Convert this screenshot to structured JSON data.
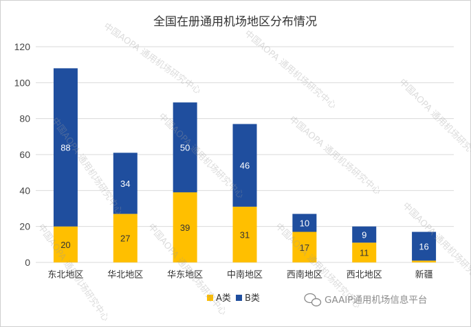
{
  "chart_data": {
    "type": "bar",
    "stacked": true,
    "title": "全国在册通用机场地区分布情况",
    "categories": [
      "东北地区",
      "华北地区",
      "华东地区",
      "中南地区",
      "西南地区",
      "西北地区",
      "新疆"
    ],
    "series": [
      {
        "name": "A类",
        "color": "#ffbf00",
        "values": [
          20,
          27,
          39,
          31,
          17,
          11,
          1
        ],
        "labels": [
          "20",
          "27",
          "39",
          "31",
          "17",
          "11",
          ""
        ]
      },
      {
        "name": "B类",
        "color": "#1f4e9e",
        "values": [
          88,
          34,
          50,
          46,
          10,
          9,
          16
        ],
        "labels": [
          "88",
          "34",
          "50",
          "46",
          "10",
          "9",
          "16"
        ]
      }
    ],
    "yticks": [
      0,
      20,
      40,
      60,
      80,
      100,
      120
    ],
    "ylim": [
      0,
      120
    ],
    "grid": true,
    "legend_position": "bottom-center",
    "label_colors": {
      "A类": "#333333",
      "B类": "#ffffff"
    }
  },
  "watermark": {
    "source": "GAAIP通用机场信息平台",
    "overlay_text": "中国AOPA 通用机场研究中心"
  }
}
